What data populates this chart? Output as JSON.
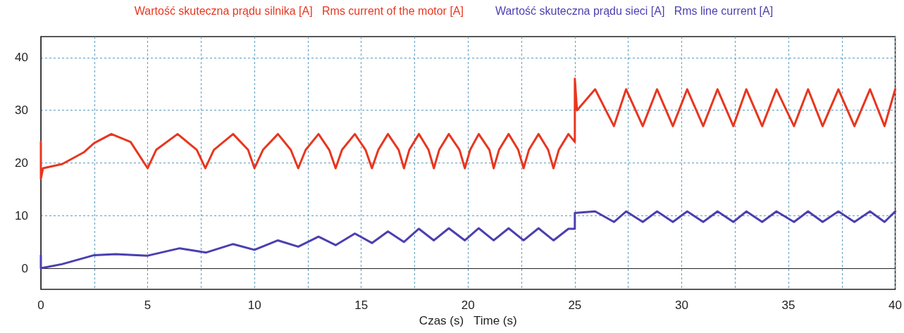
{
  "chart_data": {
    "type": "line",
    "xlabel": "Czas (s)   Time (s)",
    "xlim": [
      0,
      40
    ],
    "ylim": [
      -4,
      44
    ],
    "xticks": [
      0,
      {
        "value": 2.5,
        "label": null
      },
      5,
      {
        "value": 7.5,
        "label": null
      },
      10,
      {
        "value": 12.5,
        "label": null
      },
      15,
      {
        "value": 17.5,
        "label": null
      },
      20,
      {
        "value": 22.5,
        "label": null
      },
      25,
      {
        "value": 27.5,
        "label": null
      },
      30,
      {
        "value": 32.5,
        "label": null
      },
      35,
      {
        "value": 37.5,
        "label": null
      },
      40
    ],
    "yticks": [
      0,
      10,
      20,
      30,
      40
    ],
    "grid": true,
    "legend": "top",
    "marker": "none",
    "line_style": "solid",
    "series": [
      {
        "name": "Wartość skuteczna prądu silnika [A]   Rms current of the motor [A]",
        "color": "#e8361f",
        "x": [
          0,
          0,
          0.1,
          1,
          2,
          2.5,
          3.3,
          4.2,
          5,
          5.4,
          6.4,
          7.3,
          7.7,
          8.1,
          9,
          9.7,
          10,
          10.4,
          11.1,
          11.7,
          12.05,
          12.4,
          13,
          13.5,
          13.8,
          14.1,
          14.7,
          15.2,
          15.5,
          15.8,
          16.25,
          16.75,
          17,
          17.25,
          17.7,
          18.15,
          18.4,
          18.65,
          19.1,
          19.6,
          19.85,
          20.1,
          20.5,
          21,
          21.2,
          21.45,
          21.9,
          22.35,
          22.6,
          22.85,
          23.3,
          23.75,
          24,
          24.25,
          24.7,
          25,
          25,
          25.1,
          25.95,
          26.83,
          27.4,
          28.18,
          28.85,
          29.59,
          30.26,
          31.01,
          31.68,
          32.42,
          33.03,
          33.77,
          34.44,
          35.26,
          35.92,
          36.6,
          37.34,
          38.09,
          38.82,
          39.5,
          40
        ],
        "values": [
          24,
          17,
          19,
          19.8,
          22,
          23.8,
          25.5,
          24,
          19,
          22.5,
          25.5,
          22.5,
          19,
          22.5,
          25.5,
          22.5,
          19,
          22.5,
          25.5,
          22.5,
          19,
          22.5,
          25.5,
          22.5,
          19,
          22.5,
          25.5,
          22.5,
          19,
          22.5,
          25.5,
          22.5,
          19,
          22.5,
          25.5,
          22.5,
          19,
          22.5,
          25.5,
          22.5,
          19,
          22.5,
          25.5,
          22.5,
          19,
          22.5,
          25.5,
          22.5,
          19,
          22.5,
          25.5,
          22.5,
          19,
          22.5,
          25.5,
          24,
          36,
          30,
          34,
          27,
          34,
          27,
          34,
          27,
          34,
          27,
          34,
          27,
          34,
          27,
          34,
          27,
          34,
          27,
          34,
          27,
          34,
          27,
          34
        ]
      },
      {
        "name": "Wartość skuteczna prądu sieci [A]   Rms line current [A]",
        "color": "#4b3fb0",
        "x": [
          0,
          0,
          1,
          2.5,
          3.5,
          5,
          6.5,
          7.74,
          9,
          10,
          11.1,
          12.05,
          13,
          13.8,
          14.7,
          15.5,
          16.25,
          17,
          17.7,
          18.4,
          19.1,
          19.85,
          20.5,
          21.2,
          21.9,
          22.6,
          23.3,
          24,
          24.7,
          25,
          25,
          25.95,
          26.83,
          27.4,
          28.18,
          28.85,
          29.59,
          30.26,
          31.01,
          31.68,
          32.42,
          33.03,
          33.77,
          34.44,
          35.26,
          35.92,
          36.6,
          37.34,
          38.09,
          38.82,
          39.5,
          40
        ],
        "values": [
          2.5,
          0,
          0.8,
          2.5,
          2.7,
          2.4,
          3.8,
          3,
          4.6,
          3.5,
          5.3,
          4.1,
          6,
          4.4,
          6.6,
          4.8,
          7,
          5,
          7.5,
          5.3,
          7.6,
          5.3,
          7.6,
          5.3,
          7.6,
          5.3,
          7.6,
          5.3,
          7.5,
          7.5,
          10.5,
          10.8,
          8.8,
          10.8,
          8.8,
          10.8,
          8.8,
          10.8,
          8.8,
          10.8,
          8.8,
          10.8,
          8.8,
          10.8,
          8.8,
          10.8,
          8.8,
          10.8,
          8.8,
          10.8,
          8.8,
          10.8
        ]
      }
    ]
  }
}
